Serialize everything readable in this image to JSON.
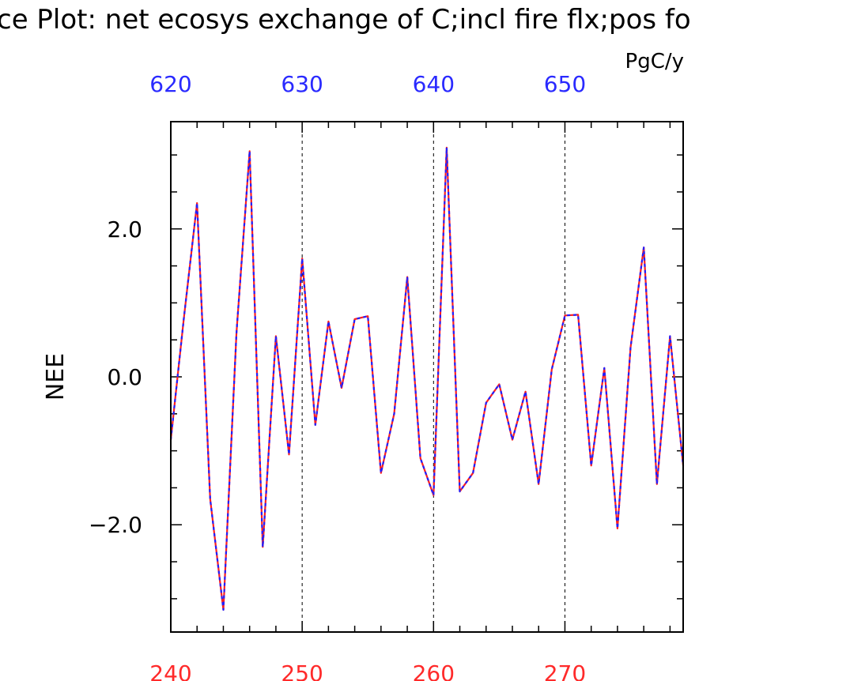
{
  "chart_data": {
    "type": "line",
    "title": "ce Plot: net ecosys exchange of C;incl fire flx;pos fo",
    "units": "PgC/y",
    "ylabel": "NEE",
    "xlim": [
      240,
      279
    ],
    "top_axis_offset": 380,
    "ylim": [
      -3.45,
      3.45
    ],
    "bottom_ticks": [
      "240",
      "250",
      "260",
      "270"
    ],
    "bottom_tick_values": [
      240,
      250,
      260,
      270
    ],
    "top_ticks": [
      "620",
      "630",
      "640",
      "650"
    ],
    "top_tick_values": [
      620,
      630,
      640,
      650
    ],
    "y_ticks": [
      "2.0",
      "0.0",
      "−2.0"
    ],
    "y_tick_values": [
      2.0,
      0.0,
      -2.0
    ],
    "y_minor_step": 0.5,
    "x_gridlines": [
      250,
      260,
      270
    ],
    "colors": {
      "bottom_axis": "#ff2a2a",
      "top_axis": "#2a2aff",
      "line_red": "#ff2020",
      "line_blue": "#2020ff"
    },
    "x": [
      240,
      241,
      242,
      243,
      244,
      245,
      246,
      247,
      248,
      249,
      250,
      251,
      252,
      253,
      254,
      255,
      256,
      257,
      258,
      259,
      260,
      261,
      262,
      263,
      264,
      265,
      266,
      267,
      268,
      269,
      270,
      271,
      272,
      273,
      274,
      275,
      276,
      277,
      278,
      279
    ],
    "series": [
      {
        "values": [
          -0.85,
          0.8,
          2.35,
          -1.65,
          -3.15,
          0.6,
          3.05,
          -2.3,
          0.55,
          -1.05,
          1.6,
          -0.65,
          0.75,
          -0.15,
          0.78,
          0.82,
          -1.3,
          -0.5,
          1.35,
          -1.1,
          -1.6,
          3.1,
          -1.55,
          -1.3,
          -0.35,
          -0.1,
          -0.85,
          -0.2,
          -1.45,
          0.1,
          0.83,
          0.84,
          -1.2,
          0.12,
          -2.05,
          0.4,
          1.75,
          -1.45,
          0.55,
          -1.2
        ]
      }
    ]
  }
}
